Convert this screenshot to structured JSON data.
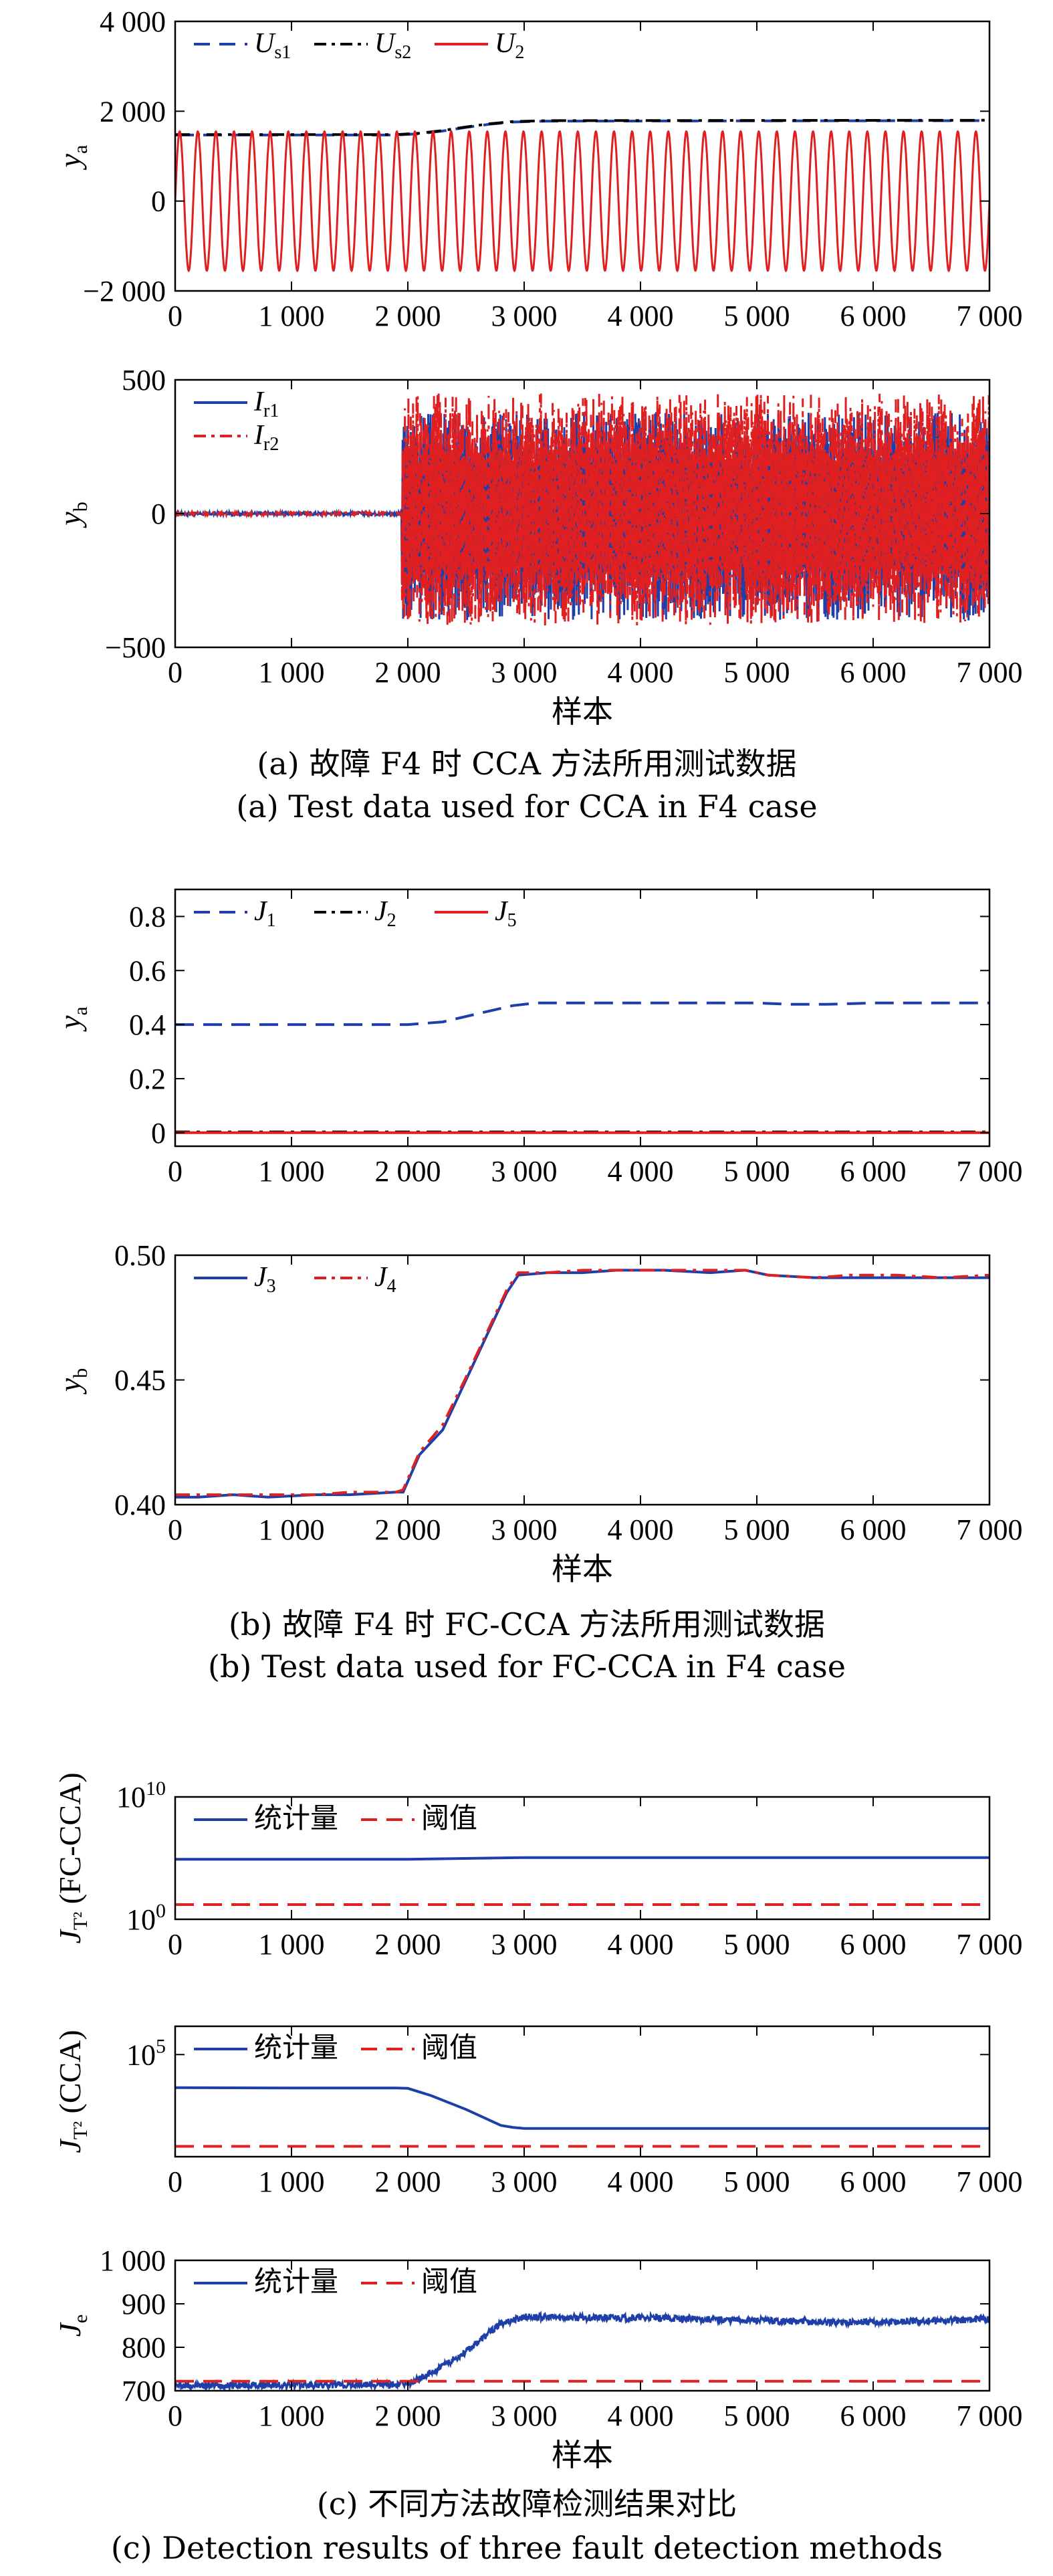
{
  "figure": {
    "captions": [
      {
        "zh": "(a) 故障 F4 时 CCA 方法所用测试数据",
        "en": "(a) Test data used for CCA in F4 case"
      },
      {
        "zh": "(b) 故障 F4 时 FC-CCA 方法所用测试数据",
        "en": "(b) Test data used for FC-CCA in F4 case"
      },
      {
        "zh": "(c) 不同方法故障检测结果对比",
        "en": "(c) Detection results of three fault detection methods"
      }
    ]
  },
  "chart_data": [
    {
      "id": "a1",
      "type": "line",
      "ylabel": "y",
      "ylabel_sub": "a",
      "xlim": [
        0,
        7000
      ],
      "ylim": [
        -2000,
        4000
      ],
      "xticks": [
        0,
        1000,
        2000,
        3000,
        4000,
        5000,
        6000,
        7000
      ],
      "xtick_labels": [
        "0",
        "1 000",
        "2 000",
        "3 000",
        "4 000",
        "5 000",
        "6 000",
        "7 000"
      ],
      "yticks": [
        -2000,
        0,
        2000,
        4000
      ],
      "ytick_labels": [
        "−2 000",
        "0",
        "2 000",
        "4 000"
      ],
      "legend": "top-left",
      "series": [
        {
          "name": "U",
          "sub": "s1",
          "color": "#1f3fa8",
          "dash": "dashed",
          "x": [
            0,
            1900,
            2100,
            2300,
            2500,
            2700,
            2900,
            3200,
            7000
          ],
          "y": [
            1470,
            1470,
            1500,
            1560,
            1640,
            1710,
            1760,
            1780,
            1790
          ]
        },
        {
          "name": "U",
          "sub": "s2",
          "color": "#000000",
          "dash": "dashdot",
          "x": [
            0,
            1900,
            2100,
            2300,
            2500,
            2700,
            2900,
            3200,
            7000
          ],
          "y": [
            1480,
            1480,
            1510,
            1570,
            1650,
            1720,
            1770,
            1790,
            1800
          ]
        },
        {
          "name": "U",
          "sub": "2",
          "color": "#e02020",
          "dash": "solid",
          "oscillation": {
            "amplitude": 1550,
            "cycles": 45
          }
        }
      ]
    },
    {
      "id": "a2",
      "type": "line",
      "ylabel": "y",
      "ylabel_sub": "b",
      "xlabel": "样本",
      "xlim": [
        0,
        7000
      ],
      "ylim": [
        -500,
        500
      ],
      "xticks": [
        0,
        1000,
        2000,
        3000,
        4000,
        5000,
        6000,
        7000
      ],
      "xtick_labels": [
        "0",
        "1 000",
        "2 000",
        "3 000",
        "4 000",
        "5 000",
        "6 000",
        "7 000"
      ],
      "yticks": [
        -500,
        0,
        500
      ],
      "ytick_labels": [
        "−500",
        "0",
        "500"
      ],
      "legend": "top-left",
      "series": [
        {
          "name": "I",
          "sub": "r1",
          "color": "#1f3fa8",
          "dash": "solid",
          "fault_start": 1950,
          "pre_fault_value": 0,
          "post_fault_range": [
            -400,
            380
          ]
        },
        {
          "name": "I",
          "sub": "r2",
          "color": "#e02020",
          "dash": "dashdot",
          "fault_start": 1950,
          "pre_fault_value": 0,
          "post_fault_range": [
            -420,
            450
          ]
        }
      ]
    },
    {
      "id": "b1",
      "type": "line",
      "ylabel": "y",
      "ylabel_sub": "a",
      "xlim": [
        0,
        7000
      ],
      "ylim": [
        -0.05,
        0.9
      ],
      "xticks": [
        0,
        1000,
        2000,
        3000,
        4000,
        5000,
        6000,
        7000
      ],
      "xtick_labels": [
        "0",
        "1 000",
        "2 000",
        "3 000",
        "4 000",
        "5 000",
        "6 000",
        "7 000"
      ],
      "yticks": [
        0,
        0.2,
        0.4,
        0.6,
        0.8
      ],
      "ytick_labels": [
        "0",
        "0.2",
        "0.4",
        "0.6",
        "0.8"
      ],
      "legend": "top-left",
      "series": [
        {
          "name": "J",
          "sub": "1",
          "color": "#1f3fa8",
          "dash": "dashed",
          "x": [
            0,
            2000,
            2300,
            2600,
            2900,
            3100,
            3500,
            4000,
            5000,
            5300,
            5600,
            6000,
            7000
          ],
          "y": [
            0.4,
            0.4,
            0.41,
            0.44,
            0.47,
            0.48,
            0.48,
            0.48,
            0.48,
            0.475,
            0.475,
            0.48,
            0.48
          ]
        },
        {
          "name": "J",
          "sub": "2",
          "color": "#000000",
          "dash": "dashdot",
          "x": [
            0,
            7000
          ],
          "y": [
            0.003,
            0.003
          ]
        },
        {
          "name": "J",
          "sub": "5",
          "color": "#e02020",
          "dash": "solid",
          "x": [
            0,
            7000
          ],
          "y": [
            0.0,
            0.0
          ]
        }
      ]
    },
    {
      "id": "b2",
      "type": "line",
      "ylabel": "y",
      "ylabel_sub": "b",
      "xlabel": "样本",
      "xlim": [
        0,
        7000
      ],
      "ylim": [
        0.4,
        0.5
      ],
      "xticks": [
        0,
        1000,
        2000,
        3000,
        4000,
        5000,
        6000,
        7000
      ],
      "xtick_labels": [
        "0",
        "1 000",
        "2 000",
        "3 000",
        "4 000",
        "5 000",
        "6 000",
        "7 000"
      ],
      "yticks": [
        0.4,
        0.45,
        0.5
      ],
      "ytick_labels": [
        "0.40",
        "0.45",
        "0.50"
      ],
      "legend": "top-left",
      "series": [
        {
          "name": "J",
          "sub": "3",
          "color": "#1f3fa8",
          "dash": "solid",
          "x": [
            0,
            200,
            500,
            800,
            1200,
            1500,
            1900,
            1960,
            2100,
            2300,
            2500,
            2700,
            2850,
            2950,
            3200,
            3500,
            3800,
            4200,
            4600,
            4900,
            5100,
            5500,
            5800,
            6200,
            6600,
            7000
          ],
          "y": [
            0.403,
            0.403,
            0.404,
            0.403,
            0.404,
            0.404,
            0.405,
            0.405,
            0.42,
            0.43,
            0.45,
            0.47,
            0.485,
            0.492,
            0.493,
            0.493,
            0.494,
            0.494,
            0.493,
            0.494,
            0.492,
            0.491,
            0.491,
            0.491,
            0.491,
            0.491
          ]
        },
        {
          "name": "J",
          "sub": "4",
          "color": "#e02020",
          "dash": "dashdot",
          "x": [
            0,
            200,
            500,
            800,
            1200,
            1500,
            1900,
            1960,
            2100,
            2300,
            2500,
            2700,
            2850,
            2950,
            3200,
            3500,
            3800,
            4200,
            4600,
            4900,
            5100,
            5500,
            5800,
            6200,
            6600,
            7000
          ],
          "y": [
            0.404,
            0.404,
            0.404,
            0.404,
            0.404,
            0.405,
            0.405,
            0.406,
            0.421,
            0.432,
            0.451,
            0.471,
            0.486,
            0.493,
            0.493,
            0.494,
            0.494,
            0.494,
            0.494,
            0.494,
            0.492,
            0.491,
            0.492,
            0.492,
            0.491,
            0.492
          ]
        }
      ]
    },
    {
      "id": "c1",
      "type": "line",
      "ylabel": "J",
      "ylabel_sub": "T²",
      "ylabel_suffix": " (FC-CCA)",
      "yscale": "log",
      "ylim": [
        1,
        10000000000
      ],
      "xlim": [
        0,
        7000
      ],
      "xticks": [
        0,
        1000,
        2000,
        3000,
        4000,
        5000,
        6000,
        7000
      ],
      "xtick_labels": [
        "0",
        "1 000",
        "2 000",
        "3 000",
        "4 000",
        "5 000",
        "6 000",
        "7 000"
      ],
      "yticks": [
        1,
        10000000000
      ],
      "ytick_labels": [
        "10^0",
        "10^10"
      ],
      "legend": "top-left",
      "series": [
        {
          "name": "统计量",
          "color": "#1f3fa8",
          "dash": "solid",
          "x": [
            0,
            2000,
            3000,
            7000
          ],
          "y": [
            80000,
            80000,
            110000,
            110000
          ]
        },
        {
          "name": "阈值",
          "color": "#e02020",
          "dash": "dashed",
          "x": [
            0,
            7000
          ],
          "y": [
            16,
            16
          ]
        }
      ]
    },
    {
      "id": "c2",
      "type": "line",
      "ylabel": "J",
      "ylabel_sub": "T²",
      "ylabel_suffix": " (CCA)",
      "yscale": "log",
      "ylim": [
        2,
        2000000
      ],
      "xlim": [
        0,
        7000
      ],
      "xticks": [
        0,
        1000,
        2000,
        3000,
        4000,
        5000,
        6000,
        7000
      ],
      "xtick_labels": [
        "0",
        "1 000",
        "2 000",
        "3 000",
        "4 000",
        "5 000",
        "6 000",
        "7 000"
      ],
      "yticks": [
        100000
      ],
      "ytick_labels": [
        "10^5"
      ],
      "legend": "top-left",
      "series": [
        {
          "name": "统计量",
          "color": "#1f3fa8",
          "dash": "solid",
          "x": [
            0,
            1000,
            1900,
            2000,
            2200,
            2500,
            2800,
            2900,
            3000,
            7000
          ],
          "y": [
            3000,
            2900,
            2900,
            2800,
            1300,
            300,
            55,
            45,
            40,
            40
          ]
        },
        {
          "name": "阈值",
          "color": "#e02020",
          "dash": "dashed",
          "x": [
            0,
            7000
          ],
          "y": [
            6,
            6
          ]
        }
      ]
    },
    {
      "id": "c3",
      "type": "line",
      "ylabel": "J",
      "ylabel_sub": "e",
      "xlabel": "样本",
      "xlim": [
        0,
        7000
      ],
      "ylim": [
        700,
        1000
      ],
      "xticks": [
        0,
        1000,
        2000,
        3000,
        4000,
        5000,
        6000,
        7000
      ],
      "xtick_labels": [
        "0",
        "1 000",
        "2 000",
        "3 000",
        "4 000",
        "5 000",
        "6 000",
        "7 000"
      ],
      "yticks": [
        700,
        800,
        900,
        1000
      ],
      "ytick_labels": [
        "700",
        "800",
        "900",
        "1 000"
      ],
      "legend": "top-left",
      "series": [
        {
          "name": "统计量",
          "color": "#1f3fa8",
          "dash": "solid",
          "noise": 8,
          "x": [
            0,
            1900,
            2000,
            2200,
            2500,
            2800,
            3000,
            3500,
            4000,
            4500,
            5000,
            5500,
            6000,
            6500,
            7000
          ],
          "y": [
            712,
            714,
            716,
            740,
            790,
            855,
            870,
            868,
            868,
            865,
            862,
            858,
            858,
            860,
            866
          ]
        },
        {
          "name": "阈值",
          "color": "#e02020",
          "dash": "dashed",
          "x": [
            0,
            7000
          ],
          "y": [
            722,
            722
          ]
        }
      ]
    }
  ]
}
